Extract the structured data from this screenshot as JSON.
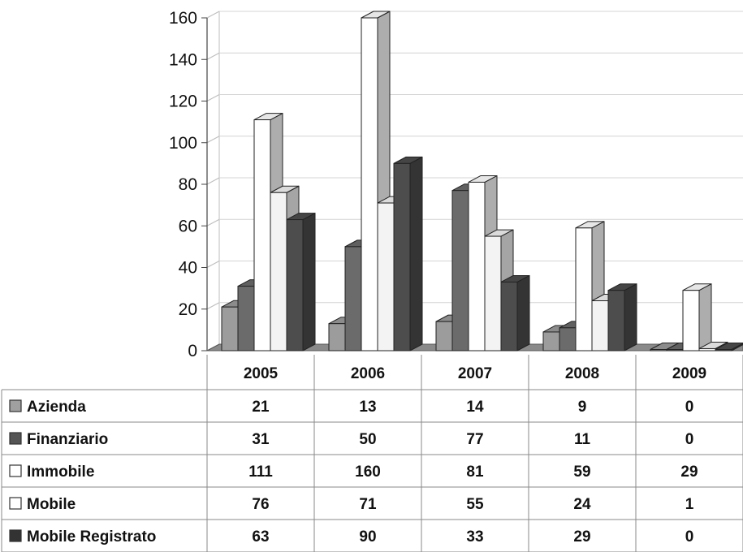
{
  "chart_data": {
    "type": "bar",
    "categories": [
      "2005",
      "2006",
      "2007",
      "2008",
      "2009"
    ],
    "series": [
      {
        "name": "Azienda",
        "values": [
          21,
          13,
          14,
          9,
          0
        ],
        "color": "#9c9c9c",
        "swatch": "#a0a0a0"
      },
      {
        "name": "Finanziario",
        "values": [
          31,
          50,
          77,
          11,
          0
        ],
        "color": "#6b6b6b",
        "swatch": "#555555"
      },
      {
        "name": "Immobile",
        "values": [
          111,
          160,
          81,
          59,
          29
        ],
        "color": "#ffffff",
        "swatch": "#ffffff"
      },
      {
        "name": "Mobile",
        "values": [
          76,
          71,
          55,
          24,
          1
        ],
        "color": "#f3f3f3",
        "swatch": "#ffffff"
      },
      {
        "name": "Mobile Registrato",
        "values": [
          63,
          90,
          33,
          29,
          0
        ],
        "color": "#4d4d4d",
        "swatch": "#333333"
      }
    ],
    "y_ticks": [
      "0",
      "20",
      "40",
      "60",
      "80",
      "100",
      "120",
      "140",
      "160"
    ],
    "ylim": [
      0,
      160
    ],
    "title": "",
    "xlabel": "",
    "ylabel": "",
    "grid": true,
    "legend": "data-table-left",
    "style": "3d-clustered-columns"
  }
}
